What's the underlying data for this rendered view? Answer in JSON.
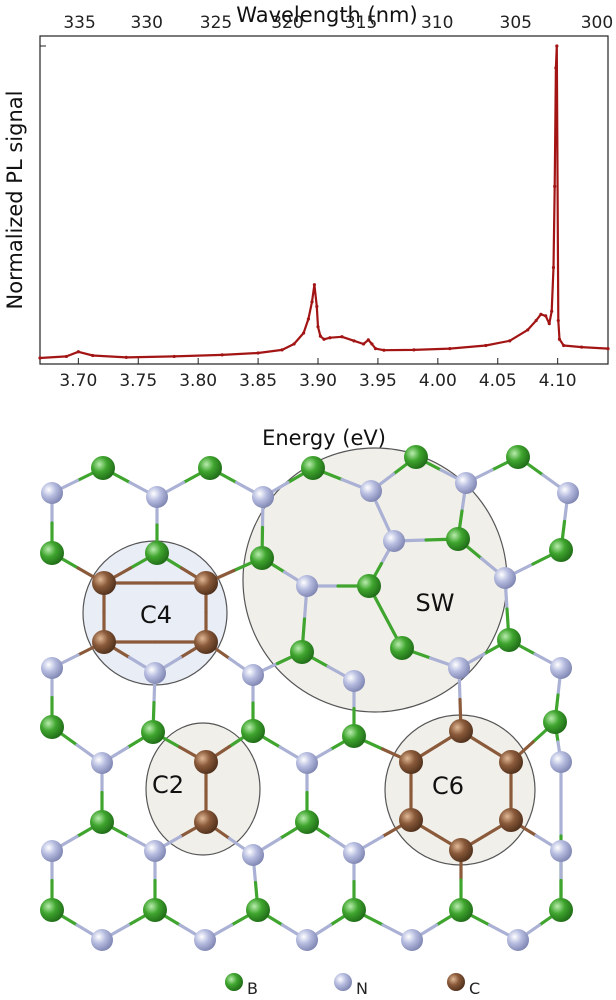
{
  "chart_data": {
    "type": "line",
    "top_axis_label": "Wavelength (nm)",
    "top_ticks": [
      335,
      330,
      325,
      320,
      315,
      310,
      305,
      300
    ],
    "xlabel": "Energy (eV)",
    "ylabel": "Normalized PL signal",
    "x_ticks": [
      3.7,
      3.75,
      3.8,
      3.85,
      3.9,
      3.95,
      4.0,
      4.05,
      4.1
    ],
    "xlim": [
      3.668,
      4.142
    ],
    "ylim": [
      0,
      1.0
    ],
    "series": [
      {
        "color": "#a31515",
        "x": [
          3.668,
          3.69,
          3.7,
          3.712,
          3.74,
          3.78,
          3.82,
          3.85,
          3.87,
          3.88,
          3.888,
          3.892,
          3.895,
          3.897,
          3.899,
          3.9,
          3.902,
          3.905,
          3.91,
          3.92,
          3.93,
          3.938,
          3.942,
          3.945,
          3.948,
          3.955,
          3.98,
          4.01,
          4.04,
          4.06,
          4.075,
          4.082,
          4.086,
          4.09,
          4.093,
          4.095,
          4.0965,
          4.0975,
          4.0985,
          4.0993,
          4.1005,
          4.1015,
          4.105,
          4.12,
          4.142
        ],
        "y": [
          0.0,
          0.005,
          0.02,
          0.008,
          0.002,
          0.005,
          0.01,
          0.016,
          0.026,
          0.045,
          0.08,
          0.125,
          0.18,
          0.235,
          0.165,
          0.1,
          0.07,
          0.06,
          0.065,
          0.068,
          0.055,
          0.045,
          0.058,
          0.045,
          0.03,
          0.025,
          0.026,
          0.03,
          0.04,
          0.055,
          0.09,
          0.12,
          0.14,
          0.135,
          0.11,
          0.15,
          0.29,
          0.55,
          0.93,
          1.0,
          0.12,
          0.06,
          0.04,
          0.035,
          0.03
        ]
      }
    ]
  },
  "lattice": {
    "defects": [
      {
        "id": "C4",
        "label": "C4"
      },
      {
        "id": "SW",
        "label": "SW"
      },
      {
        "id": "C2",
        "label": "C2"
      },
      {
        "id": "C6",
        "label": "C6"
      }
    ],
    "colors": {
      "B": "#3fa52e",
      "N": "#aab1d4",
      "C": "#8a5a3a",
      "bond": "#9fd78c"
    },
    "legend": [
      {
        "element": "B",
        "label": "B",
        "color": "#3fa52e"
      },
      {
        "element": "N",
        "label": "N",
        "color": "#aab1d4"
      },
      {
        "element": "C",
        "label": "C",
        "color": "#8a5a3a"
      }
    ]
  }
}
